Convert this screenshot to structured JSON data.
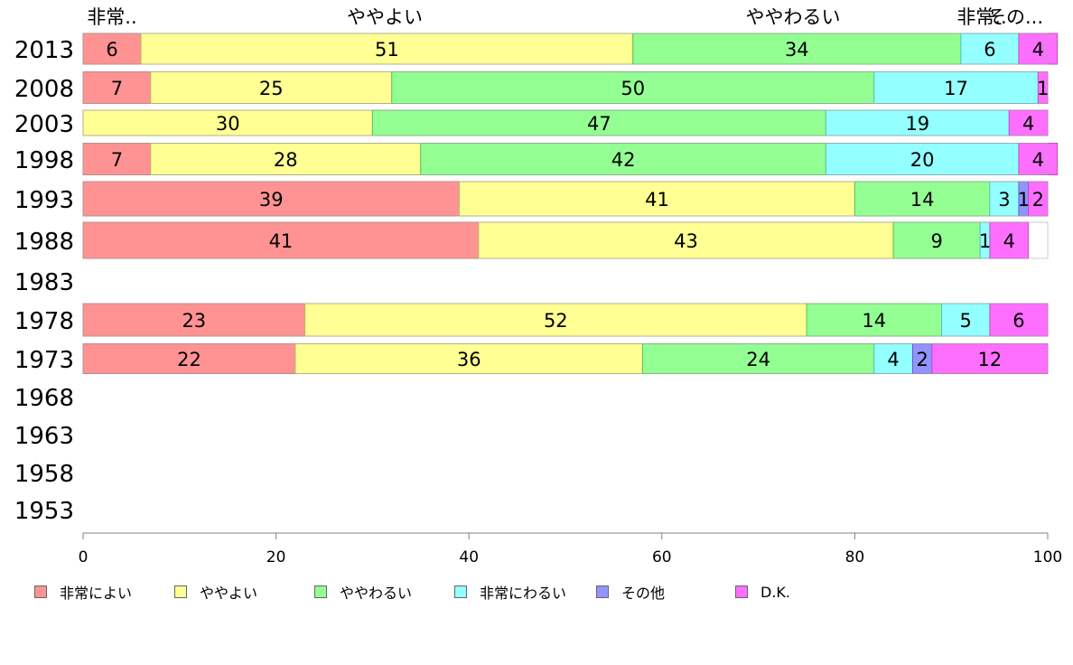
{
  "chart_data": {
    "type": "bar",
    "orientation": "horizontal",
    "stacked": true,
    "categories": [
      "2013",
      "2008",
      "2003",
      "1998",
      "1993",
      "1988",
      "1983",
      "1978",
      "1973",
      "1968",
      "1963",
      "1958",
      "1953"
    ],
    "series": [
      {
        "name": "非常によい",
        "color": "#ff9393",
        "values": [
          6,
          7,
          0,
          7,
          39,
          41,
          null,
          23,
          22,
          null,
          null,
          null,
          null
        ]
      },
      {
        "name": "ややよい",
        "color": "#ffff93",
        "values": [
          51,
          25,
          30,
          28,
          41,
          43,
          null,
          52,
          36,
          null,
          null,
          null,
          null
        ]
      },
      {
        "name": "ややわるい",
        "color": "#93ff93",
        "values": [
          34,
          50,
          47,
          42,
          14,
          9,
          null,
          14,
          24,
          null,
          null,
          null,
          null
        ]
      },
      {
        "name": "非常にわるい",
        "color": "#93ffff",
        "values": [
          6,
          17,
          19,
          20,
          3,
          1,
          null,
          5,
          4,
          null,
          null,
          null,
          null
        ]
      },
      {
        "name": "その他",
        "color": "#9393ff",
        "values": [
          0,
          0,
          0,
          0,
          1,
          0,
          null,
          0,
          2,
          null,
          null,
          null,
          null
        ]
      },
      {
        "name": "D.K.",
        "color": "#ff6fff",
        "values": [
          4,
          1,
          4,
          4,
          2,
          4,
          null,
          6,
          12,
          null,
          null,
          null,
          null
        ]
      }
    ],
    "top_labels": [
      "非常..",
      "ややよい",
      "ややわるい",
      "非常..",
      "その..."
    ],
    "xlim": [
      0,
      100
    ],
    "xticks": [
      "0",
      "20",
      "40",
      "60",
      "80",
      "100"
    ],
    "grid": false,
    "legend_position": "bottom"
  }
}
